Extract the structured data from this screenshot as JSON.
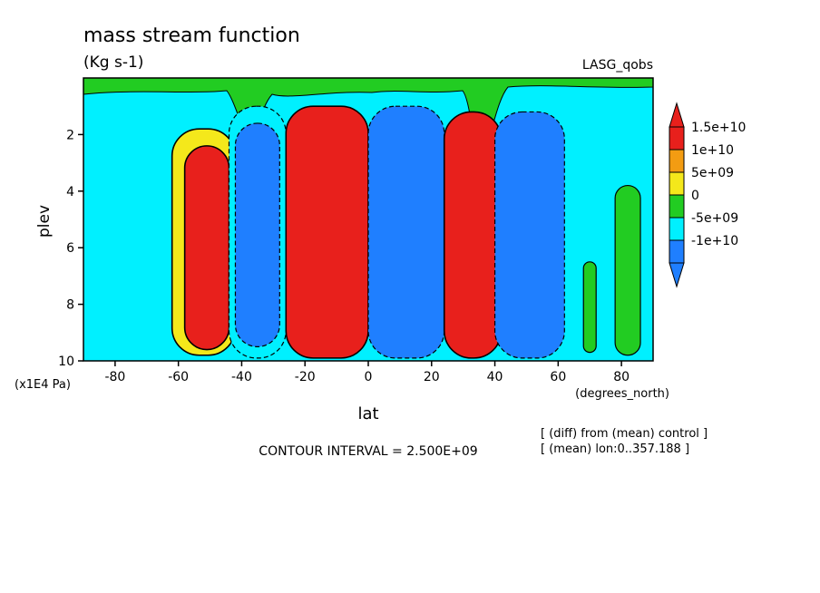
{
  "chart_data": {
    "type": "heatmap",
    "title": "mass stream function",
    "subtitle": "(Kg s-1)",
    "dataset_label": "LASG_qobs",
    "xlabel": "lat",
    "x_units": "(degrees_north)",
    "ylabel": "plev",
    "y_units": "(x1E4 Pa)",
    "xlim": [
      -90,
      90
    ],
    "ylim": [
      10,
      0
    ],
    "x_ticks": [
      "-80",
      "-60",
      "-40",
      "-20",
      "0",
      "20",
      "40",
      "60",
      "80"
    ],
    "x_tick_values": [
      -80,
      -60,
      -40,
      -20,
      0,
      20,
      40,
      60,
      80
    ],
    "y_ticks": [
      "2",
      "4",
      "6",
      "8",
      "10"
    ],
    "y_tick_values": [
      2,
      4,
      6,
      8,
      10
    ],
    "contour_interval": "CONTOUR INTERVAL = 2.500E+09",
    "notes": [
      "[ (diff) from (mean) control ]",
      "[ (mean) lon:0..357.188 ]"
    ],
    "colorbar": {
      "labels": [
        "1.5e+10",
        "1e+10",
        "5e+09",
        "0",
        "-5e+09",
        "-1e+10"
      ],
      "levels": [
        15000000000,
        10000000000,
        5000000000,
        0,
        -5000000000,
        -10000000000
      ],
      "colors": [
        "#e8201c",
        "#f39c12",
        "#f4e81b",
        "#22cc22",
        "#00f0ff",
        "#1f7fff"
      ]
    },
    "cells": [
      {
        "lat_min": -62,
        "lat_max": -42,
        "p_top": 1.8,
        "p_bot": 9.8,
        "value": 5000000000
      },
      {
        "lat_min": -58,
        "lat_max": -44,
        "p_top": 2.4,
        "p_bot": 9.6,
        "value": 15000000000
      },
      {
        "lat_min": -44,
        "lat_max": -26,
        "p_top": 1.0,
        "p_bot": 9.9,
        "value": -5000000000
      },
      {
        "lat_min": -42,
        "lat_max": -28,
        "p_top": 1.6,
        "p_bot": 9.5,
        "value": -10000000000
      },
      {
        "lat_min": -26,
        "lat_max": 0,
        "p_top": 1.0,
        "p_bot": 9.9,
        "value": 15000000000
      },
      {
        "lat_min": 0,
        "lat_max": 24,
        "p_top": 1.0,
        "p_bot": 9.9,
        "value": -10000000000
      },
      {
        "lat_min": 24,
        "lat_max": 42,
        "p_top": 1.2,
        "p_bot": 9.9,
        "value": 15000000000
      },
      {
        "lat_min": 40,
        "lat_max": 62,
        "p_top": 1.2,
        "p_bot": 9.9,
        "value": -10000000000
      },
      {
        "lat_min": 68,
        "lat_max": 72,
        "p_top": 6.5,
        "p_bot": 9.7,
        "value": 0
      },
      {
        "lat_min": 78,
        "lat_max": 86,
        "p_top": 3.8,
        "p_bot": 9.8,
        "value": 0
      }
    ]
  }
}
